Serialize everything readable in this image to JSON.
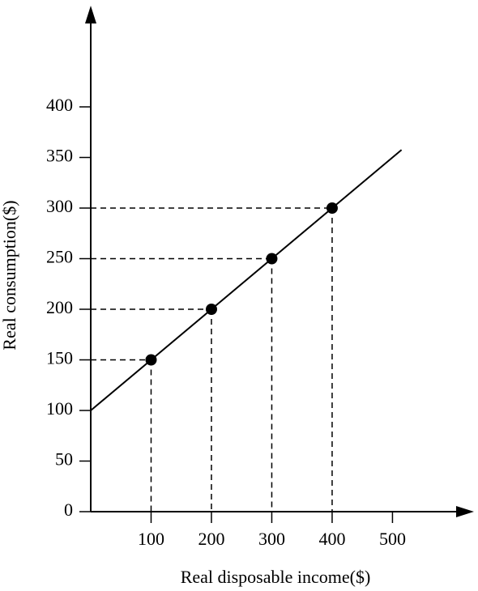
{
  "chart_data": {
    "type": "line",
    "x_label": "Real disposable income($)",
    "y_label": "Real consumption($)",
    "xlim": [
      0,
      635
    ],
    "ylim": [
      0,
      500
    ],
    "xticks": [
      100,
      200,
      300,
      400,
      500
    ],
    "yticks": [
      0,
      50,
      100,
      150,
      200,
      250,
      300,
      350,
      400
    ],
    "grid": false,
    "drop_lines": true,
    "series": [
      {
        "color": "#000000",
        "marker": false,
        "x": [
          0,
          515
        ],
        "values": [
          100,
          357.5
        ]
      },
      {
        "color": "#000000",
        "marker": true,
        "line": false,
        "x": [
          100,
          200,
          300,
          400
        ],
        "values": [
          150,
          200,
          250,
          300
        ]
      }
    ]
  }
}
